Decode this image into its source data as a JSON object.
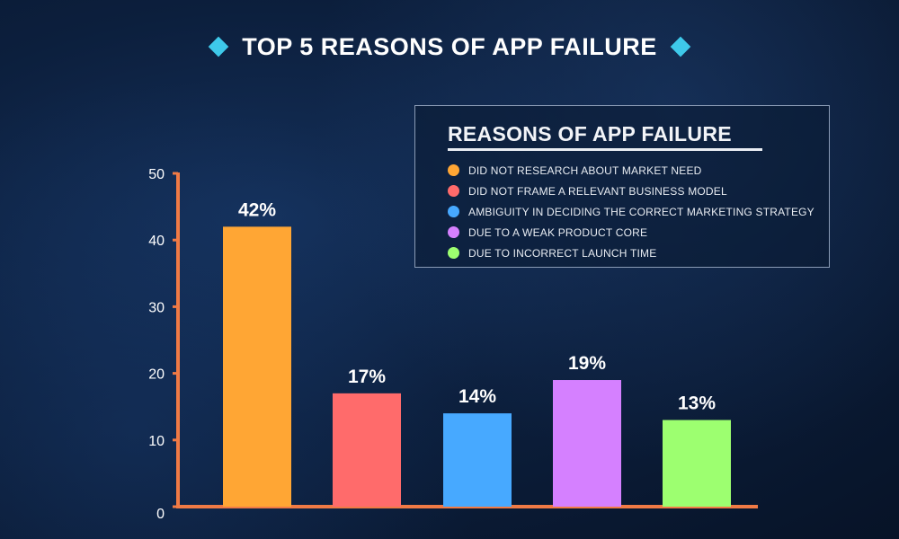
{
  "header": {
    "title": "TOP 5 REASONS OF APP FAILURE",
    "diamond_color": "#3ec9ea"
  },
  "legend": {
    "title": "REASONS OF APP FAILURE",
    "placement": "top-right",
    "items": [
      {
        "label": "DID NOT RESEARCH ABOUT MARKET NEED",
        "color": "#ffa634"
      },
      {
        "label": "DID NOT FRAME A RELEVANT BUSINESS MODEL",
        "color": "#ff6b6b"
      },
      {
        "label": "AMBIGUITY IN DECIDING THE CORRECT MARKETING STRATEGY",
        "color": "#47a9ff"
      },
      {
        "label": "DUE TO A WEAK PRODUCT CORE",
        "color": "#d580ff"
      },
      {
        "label": "DUE TO INCORRECT LAUNCH TIME",
        "color": "#9dff70"
      }
    ]
  },
  "chart_data": {
    "type": "bar",
    "title": "TOP 5 REASONS OF APP FAILURE",
    "categories": [
      "DID NOT RESEARCH ABOUT MARKET NEED",
      "DID NOT FRAME A RELEVANT BUSINESS MODEL",
      "AMBIGUITY IN DECIDING THE CORRECT MARKETING STRATEGY",
      "DUE TO A WEAK PRODUCT CORE",
      "DUE TO INCORRECT LAUNCH TIME"
    ],
    "values": [
      42,
      17,
      14,
      19,
      13
    ],
    "data_labels": [
      "42%",
      "17%",
      "14%",
      "19%",
      "13%"
    ],
    "colors": [
      "#ffa634",
      "#ff6b6b",
      "#47a9ff",
      "#d580ff",
      "#9dff70"
    ],
    "ylim": [
      0,
      50
    ],
    "yticks": [
      0,
      10,
      20,
      30,
      40,
      50
    ],
    "axis_color": "#f07a45",
    "grid": false
  }
}
